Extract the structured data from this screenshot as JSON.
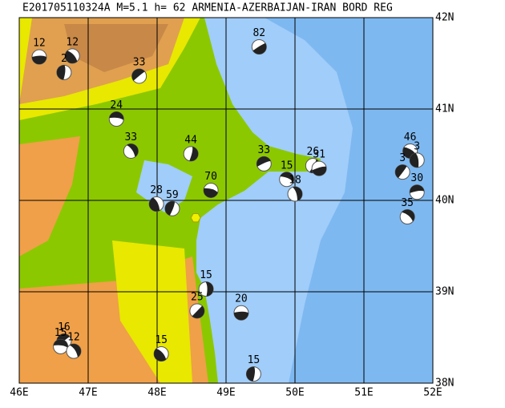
{
  "map": {
    "title": "E201705110324A M=5.1 h= 62 ARMENIA-AZERBAIJAN-IRAN BORD REG",
    "xlim": [
      46,
      52
    ],
    "ylim": [
      38,
      42
    ],
    "xticks": [
      {
        "value": 46,
        "label": "46E"
      },
      {
        "value": 47,
        "label": "47E"
      },
      {
        "value": 48,
        "label": "48E"
      },
      {
        "value": 49,
        "label": "49E"
      },
      {
        "value": 50,
        "label": "50E"
      },
      {
        "value": 51,
        "label": "51E"
      },
      {
        "value": 52,
        "label": "52E"
      }
    ],
    "yticks": [
      {
        "value": 38,
        "label": "38N"
      },
      {
        "value": 39,
        "label": "39N"
      },
      {
        "value": 40,
        "label": "40N"
      },
      {
        "value": 41,
        "label": "41N"
      },
      {
        "value": 42,
        "label": "42N"
      }
    ],
    "epicenter": {
      "lon": 48.56,
      "lat": 39.81,
      "color": "#f0f000"
    },
    "events": [
      {
        "lon": 46.29,
        "lat": 41.57,
        "depth": 12
      },
      {
        "lon": 46.77,
        "lat": 41.58,
        "depth": 12
      },
      {
        "lon": 46.65,
        "lat": 41.4,
        "depth": 2
      },
      {
        "lon": 47.74,
        "lat": 41.36,
        "depth": 33
      },
      {
        "lon": 47.41,
        "lat": 40.89,
        "depth": 24
      },
      {
        "lon": 47.62,
        "lat": 40.54,
        "depth": 33
      },
      {
        "lon": 48.49,
        "lat": 40.51,
        "depth": 44
      },
      {
        "lon": 49.48,
        "lat": 41.68,
        "depth": 82
      },
      {
        "lon": 48.78,
        "lat": 40.11,
        "depth": 70
      },
      {
        "lon": 47.99,
        "lat": 39.96,
        "depth": 28
      },
      {
        "lon": 48.22,
        "lat": 39.91,
        "depth": 59
      },
      {
        "lon": 49.55,
        "lat": 40.4,
        "depth": 33
      },
      {
        "lon": 49.88,
        "lat": 40.23,
        "depth": 15
      },
      {
        "lon": 50.0,
        "lat": 40.07,
        "depth": 18
      },
      {
        "lon": 50.26,
        "lat": 40.38,
        "depth": 26
      },
      {
        "lon": 50.35,
        "lat": 40.35,
        "depth": 31
      },
      {
        "lon": 51.67,
        "lat": 40.54,
        "depth": 46
      },
      {
        "lon": 51.77,
        "lat": 40.44,
        "depth": 3
      },
      {
        "lon": 51.56,
        "lat": 40.31,
        "depth": 3
      },
      {
        "lon": 51.77,
        "lat": 40.09,
        "depth": 30
      },
      {
        "lon": 51.63,
        "lat": 39.82,
        "depth": 35
      },
      {
        "lon": 48.71,
        "lat": 39.03,
        "depth": 15
      },
      {
        "lon": 48.58,
        "lat": 38.79,
        "depth": 25
      },
      {
        "lon": 49.22,
        "lat": 38.77,
        "depth": 20
      },
      {
        "lon": 48.06,
        "lat": 38.32,
        "depth": 15
      },
      {
        "lon": 49.4,
        "lat": 38.1,
        "depth": 15
      },
      {
        "lon": 46.65,
        "lat": 38.46,
        "depth": 16
      },
      {
        "lon": 46.6,
        "lat": 38.4,
        "depth": 15
      },
      {
        "lon": 46.79,
        "lat": 38.35,
        "depth": 12
      }
    ]
  }
}
